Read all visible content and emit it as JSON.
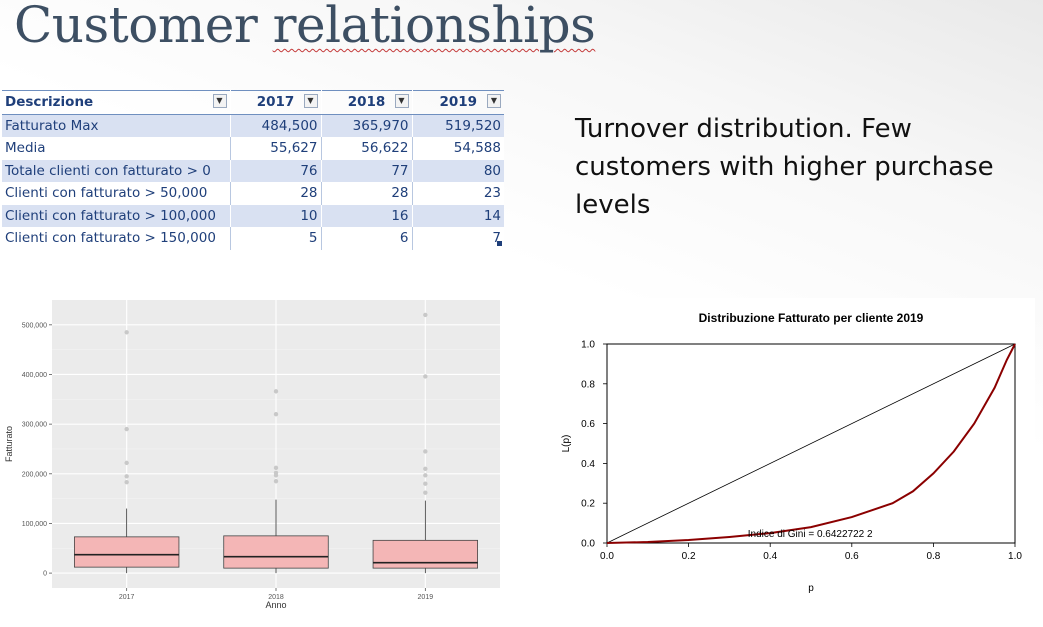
{
  "slide": {
    "title_plain": "Customer ",
    "title_squiggle": "relationships"
  },
  "table": {
    "headers": [
      "Descrizione",
      "2017",
      "2018",
      "2019"
    ],
    "rows": [
      {
        "label": "Fatturato Max",
        "values": [
          "484,500",
          "365,970",
          "519,520"
        ]
      },
      {
        "label": "Media",
        "values": [
          "55,627",
          "56,622",
          "54,588"
        ]
      },
      {
        "label": "Totale clienti con fatturato > 0",
        "values": [
          "76",
          "77",
          "80"
        ]
      },
      {
        "label": "Clienti con fatturato > 50,000",
        "values": [
          "28",
          "28",
          "23"
        ]
      },
      {
        "label": "Clienti con fatturato > 100,000",
        "values": [
          "10",
          "16",
          "14"
        ]
      },
      {
        "label": "Clienti con fatturato > 150,000",
        "values": [
          "5",
          "6",
          "7"
        ]
      }
    ],
    "filter_icon": "dropdown-arrow-icon"
  },
  "description": "Turnover distribution. Few customers with higher purchase levels",
  "colors": {
    "title": "#3d4f63",
    "table_text": "#1f3f7a",
    "band": "#d9e1f2",
    "box_fill": "#f4b6b6",
    "panel": "#ebebeb",
    "lorenz_curve": "#8b0000"
  },
  "chart_data": [
    {
      "type": "boxplot",
      "title": "",
      "xlabel": "Anno",
      "ylabel": "Fatturato",
      "categories": [
        "2017",
        "2018",
        "2019"
      ],
      "ylim": [
        -30000,
        550000
      ],
      "yticks": [
        0,
        100000,
        200000,
        300000,
        400000,
        500000
      ],
      "ytick_labels": [
        "0",
        "100,000",
        "200,000",
        "300,000",
        "400,000",
        "500,000"
      ],
      "boxes": [
        {
          "q1": 12000,
          "median": 37000,
          "q3": 73000,
          "whisker_low": 0,
          "whisker_high": 130000,
          "outliers": [
            485000,
            290000,
            222000,
            195000,
            183000
          ]
        },
        {
          "q1": 10000,
          "median": 33000,
          "q3": 75000,
          "whisker_low": 0,
          "whisker_high": 148000,
          "outliers": [
            366000,
            320000,
            212000,
            202000,
            197000,
            185000
          ]
        },
        {
          "q1": 10000,
          "median": 21000,
          "q3": 66000,
          "whisker_low": 0,
          "whisker_high": 146000,
          "outliers": [
            520000,
            396000,
            245000,
            210000,
            197000,
            180000,
            162000
          ]
        }
      ],
      "grid": true
    },
    {
      "type": "line",
      "title": "Distribuzione Fatturato per cliente 2019",
      "xlabel": "p",
      "ylabel": "L(p)",
      "xlim": [
        0,
        1
      ],
      "ylim": [
        0,
        1
      ],
      "xticks": [
        "0.0",
        "0.2",
        "0.4",
        "0.6",
        "0.8",
        "1.0"
      ],
      "yticks": [
        "0.0",
        "0.2",
        "0.4",
        "0.6",
        "0.8",
        "1.0"
      ],
      "annotation": "Indice di Gini = 0.6422722 2",
      "series": [
        {
          "name": "",
          "x": [
            0,
            1
          ],
          "y": [
            0,
            1
          ]
        },
        {
          "name": "",
          "x": [
            0,
            0.1,
            0.2,
            0.3,
            0.4,
            0.5,
            0.6,
            0.7,
            0.75,
            0.8,
            0.85,
            0.9,
            0.95,
            0.98,
            1.0
          ],
          "y": [
            0,
            0.005,
            0.015,
            0.03,
            0.05,
            0.08,
            0.13,
            0.2,
            0.26,
            0.35,
            0.46,
            0.6,
            0.78,
            0.92,
            1.0
          ]
        }
      ]
    }
  ]
}
